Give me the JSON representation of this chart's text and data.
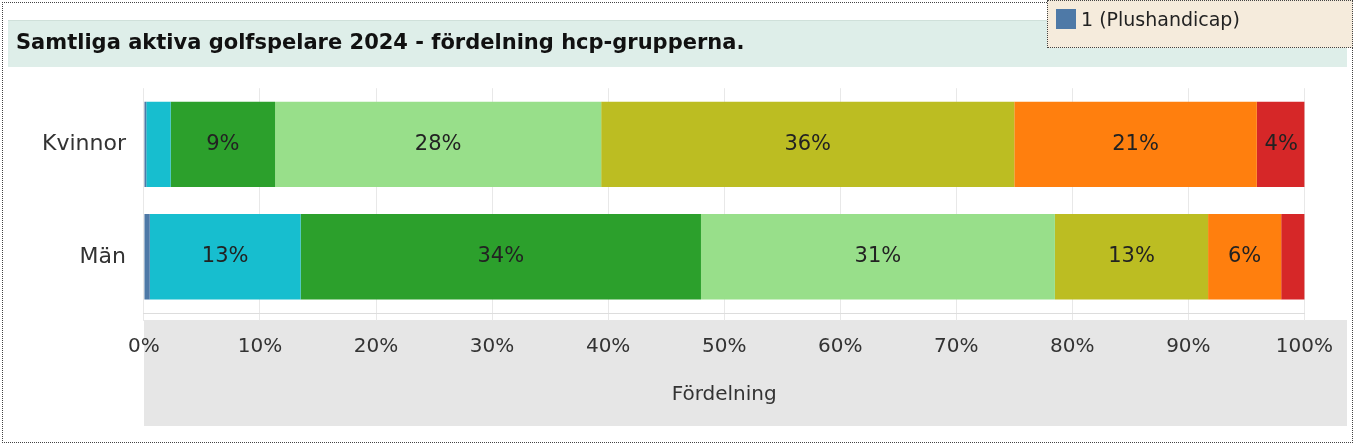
{
  "chart_data": {
    "type": "bar",
    "orientation": "horizontal",
    "stacked": true,
    "title": "Samtliga aktiva golfspelare 2024 - fördelning hcp-grupperna.",
    "xlabel": "Fördelning",
    "categories": [
      "Kvinnor",
      "Män"
    ],
    "series": [
      {
        "name": "1 (Plushandicap)",
        "color": "#4e79a7",
        "values": [
          0.2,
          0.5
        ]
      },
      {
        "color": "#17becf",
        "values": [
          2.1,
          13.0
        ],
        "value_labels": [
          null,
          "13%"
        ]
      },
      {
        "color": "#2ca02c",
        "values": [
          9.0,
          34.5
        ],
        "value_labels": [
          "9%",
          "34%"
        ]
      },
      {
        "color": "#98df8a",
        "values": [
          28.1,
          30.5
        ],
        "value_labels": [
          "28%",
          "31%"
        ]
      },
      {
        "color": "#bcbd22",
        "values": [
          35.6,
          13.2
        ],
        "value_labels": [
          "36%",
          "13%"
        ]
      },
      {
        "color": "#ff7f0e",
        "values": [
          20.9,
          6.3
        ],
        "value_labels": [
          "21%",
          "6%"
        ]
      },
      {
        "color": "#d62728",
        "values": [
          4.2,
          2.1
        ],
        "value_labels": [
          "4%",
          null
        ]
      }
    ],
    "xlim": [
      0,
      100
    ],
    "xticks": [
      {
        "value": 0,
        "label": "0%"
      },
      {
        "value": 10,
        "label": "10%"
      },
      {
        "value": 20,
        "label": "20%"
      },
      {
        "value": 30,
        "label": "30%"
      },
      {
        "value": 40,
        "label": "40%"
      },
      {
        "value": 50,
        "label": "50%"
      },
      {
        "value": 60,
        "label": "60%"
      },
      {
        "value": 70,
        "label": "70%"
      },
      {
        "value": 80,
        "label": "80%"
      },
      {
        "value": 90,
        "label": "90%"
      },
      {
        "value": 100,
        "label": "100%"
      }
    ],
    "grid": "x",
    "legend": "top right"
  }
}
